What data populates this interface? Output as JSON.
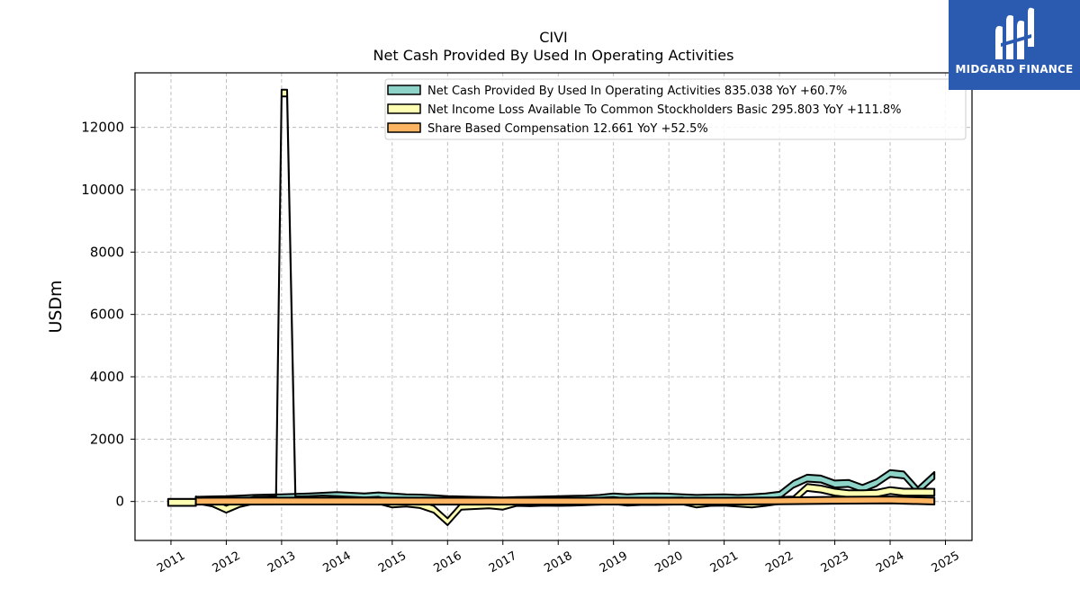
{
  "chart_data": {
    "type": "area",
    "title": "CIVI",
    "subtitle": "Net Cash Provided By Used In Operating Activities",
    "ylabel": "USDm",
    "xlabel": "",
    "ylim": [
      -1250,
      13750
    ],
    "xlim": [
      2010.35,
      2025.48
    ],
    "yticks": [
      0,
      2000,
      4000,
      6000,
      8000,
      10000,
      12000
    ],
    "xticks": [
      2011,
      2012,
      2013,
      2014,
      2015,
      2016,
      2017,
      2018,
      2019,
      2020,
      2021,
      2022,
      2023,
      2024,
      2025
    ],
    "grid": true,
    "legend_position": "top-right",
    "series": [
      {
        "name": "Net Cash Provided By Used In Operating Activities",
        "legend_label": "Net Cash Provided By Used In Operating Activities  835.038 YoY +60.7%",
        "color": "#8dd3c7",
        "points": [
          [
            2010.95,
            -30
          ],
          [
            2011.45,
            -30
          ],
          [
            2011.45,
            40
          ],
          [
            2011.7,
            50
          ],
          [
            2012.0,
            60
          ],
          [
            2012.25,
            80
          ],
          [
            2012.5,
            100
          ],
          [
            2012.75,
            110
          ],
          [
            2013.0,
            120
          ],
          [
            2013.25,
            130
          ],
          [
            2013.5,
            150
          ],
          [
            2013.75,
            170
          ],
          [
            2014.0,
            190
          ],
          [
            2014.25,
            170
          ],
          [
            2014.5,
            150
          ],
          [
            2014.75,
            180
          ],
          [
            2015.0,
            150
          ],
          [
            2015.25,
            120
          ],
          [
            2015.5,
            110
          ],
          [
            2015.75,
            90
          ],
          [
            2016.0,
            60
          ],
          [
            2016.25,
            50
          ],
          [
            2016.5,
            40
          ],
          [
            2016.75,
            30
          ],
          [
            2017.0,
            20
          ],
          [
            2017.25,
            30
          ],
          [
            2017.5,
            40
          ],
          [
            2017.75,
            50
          ],
          [
            2018.0,
            60
          ],
          [
            2018.25,
            70
          ],
          [
            2018.5,
            80
          ],
          [
            2018.75,
            100
          ],
          [
            2019.0,
            150
          ],
          [
            2019.25,
            120
          ],
          [
            2019.5,
            140
          ],
          [
            2019.75,
            150
          ],
          [
            2020.0,
            140
          ],
          [
            2020.25,
            120
          ],
          [
            2020.5,
            100
          ],
          [
            2020.75,
            110
          ],
          [
            2021.0,
            120
          ],
          [
            2021.25,
            100
          ],
          [
            2021.5,
            120
          ],
          [
            2021.75,
            150
          ],
          [
            2022.0,
            200
          ],
          [
            2022.25,
            550
          ],
          [
            2022.5,
            750
          ],
          [
            2022.75,
            720
          ],
          [
            2023.0,
            560
          ],
          [
            2023.25,
            580
          ],
          [
            2023.5,
            420
          ],
          [
            2023.75,
            600
          ],
          [
            2024.0,
            900
          ],
          [
            2024.25,
            850
          ],
          [
            2024.5,
            350
          ],
          [
            2024.8,
            835
          ]
        ]
      },
      {
        "name": "Net Income Loss Available To Common Stockholders Basic",
        "legend_label": "Net Income Loss Available To Common Stockholders Basic  295.803 YoY +111.8%",
        "color": "#ffffb3",
        "points": [
          [
            2010.95,
            -30
          ],
          [
            2011.45,
            -30
          ],
          [
            2011.45,
            50
          ],
          [
            2011.75,
            -50
          ],
          [
            2012.0,
            -250
          ],
          [
            2012.25,
            -60
          ],
          [
            2012.5,
            40
          ],
          [
            2012.75,
            50
          ],
          [
            2012.9,
            60
          ],
          [
            2013.0,
            13100
          ],
          [
            2013.1,
            13100
          ],
          [
            2013.25,
            50
          ],
          [
            2013.5,
            60
          ],
          [
            2013.75,
            80
          ],
          [
            2014.0,
            60
          ],
          [
            2014.25,
            40
          ],
          [
            2014.5,
            20
          ],
          [
            2014.75,
            40
          ],
          [
            2015.0,
            -80
          ],
          [
            2015.25,
            -50
          ],
          [
            2015.5,
            -100
          ],
          [
            2015.75,
            -250
          ],
          [
            2016.0,
            -650
          ],
          [
            2016.25,
            -150
          ],
          [
            2016.5,
            -130
          ],
          [
            2016.75,
            -110
          ],
          [
            2017.0,
            -150
          ],
          [
            2017.25,
            -30
          ],
          [
            2017.5,
            -40
          ],
          [
            2017.75,
            -20
          ],
          [
            2018.0,
            -30
          ],
          [
            2018.25,
            -20
          ],
          [
            2018.5,
            -10
          ],
          [
            2018.75,
            10
          ],
          [
            2019.0,
            30
          ],
          [
            2019.25,
            -20
          ],
          [
            2019.5,
            0
          ],
          [
            2019.75,
            0
          ],
          [
            2020.0,
            10
          ],
          [
            2020.25,
            20
          ],
          [
            2020.5,
            -80
          ],
          [
            2020.75,
            -30
          ],
          [
            2021.0,
            -20
          ],
          [
            2021.25,
            -50
          ],
          [
            2021.5,
            -80
          ],
          [
            2021.75,
            -30
          ],
          [
            2022.0,
            30
          ],
          [
            2022.25,
            50
          ],
          [
            2022.5,
            450
          ],
          [
            2022.75,
            400
          ],
          [
            2023.0,
            300
          ],
          [
            2023.25,
            250
          ],
          [
            2023.5,
            250
          ],
          [
            2023.75,
            260
          ],
          [
            2024.0,
            350
          ],
          [
            2024.25,
            300
          ],
          [
            2024.5,
            300
          ],
          [
            2024.8,
            296
          ]
        ]
      },
      {
        "name": "Share Based Compensation",
        "legend_label": "Share Based Compensation  12.661 YoY +52.5%",
        "color": "#fdb462",
        "points": [
          [
            2011.45,
            10
          ],
          [
            2012.0,
            12
          ],
          [
            2013.0,
            14
          ],
          [
            2014.0,
            14
          ],
          [
            2015.0,
            12
          ],
          [
            2016.0,
            10
          ],
          [
            2017.0,
            10
          ],
          [
            2018.0,
            10
          ],
          [
            2019.0,
            10
          ],
          [
            2020.0,
            10
          ],
          [
            2021.0,
            10
          ],
          [
            2022.0,
            20
          ],
          [
            2023.0,
            40
          ],
          [
            2024.0,
            50
          ],
          [
            2024.8,
            12.661
          ]
        ]
      }
    ]
  },
  "logo": {
    "text": "MIDGARD FINANCE"
  }
}
